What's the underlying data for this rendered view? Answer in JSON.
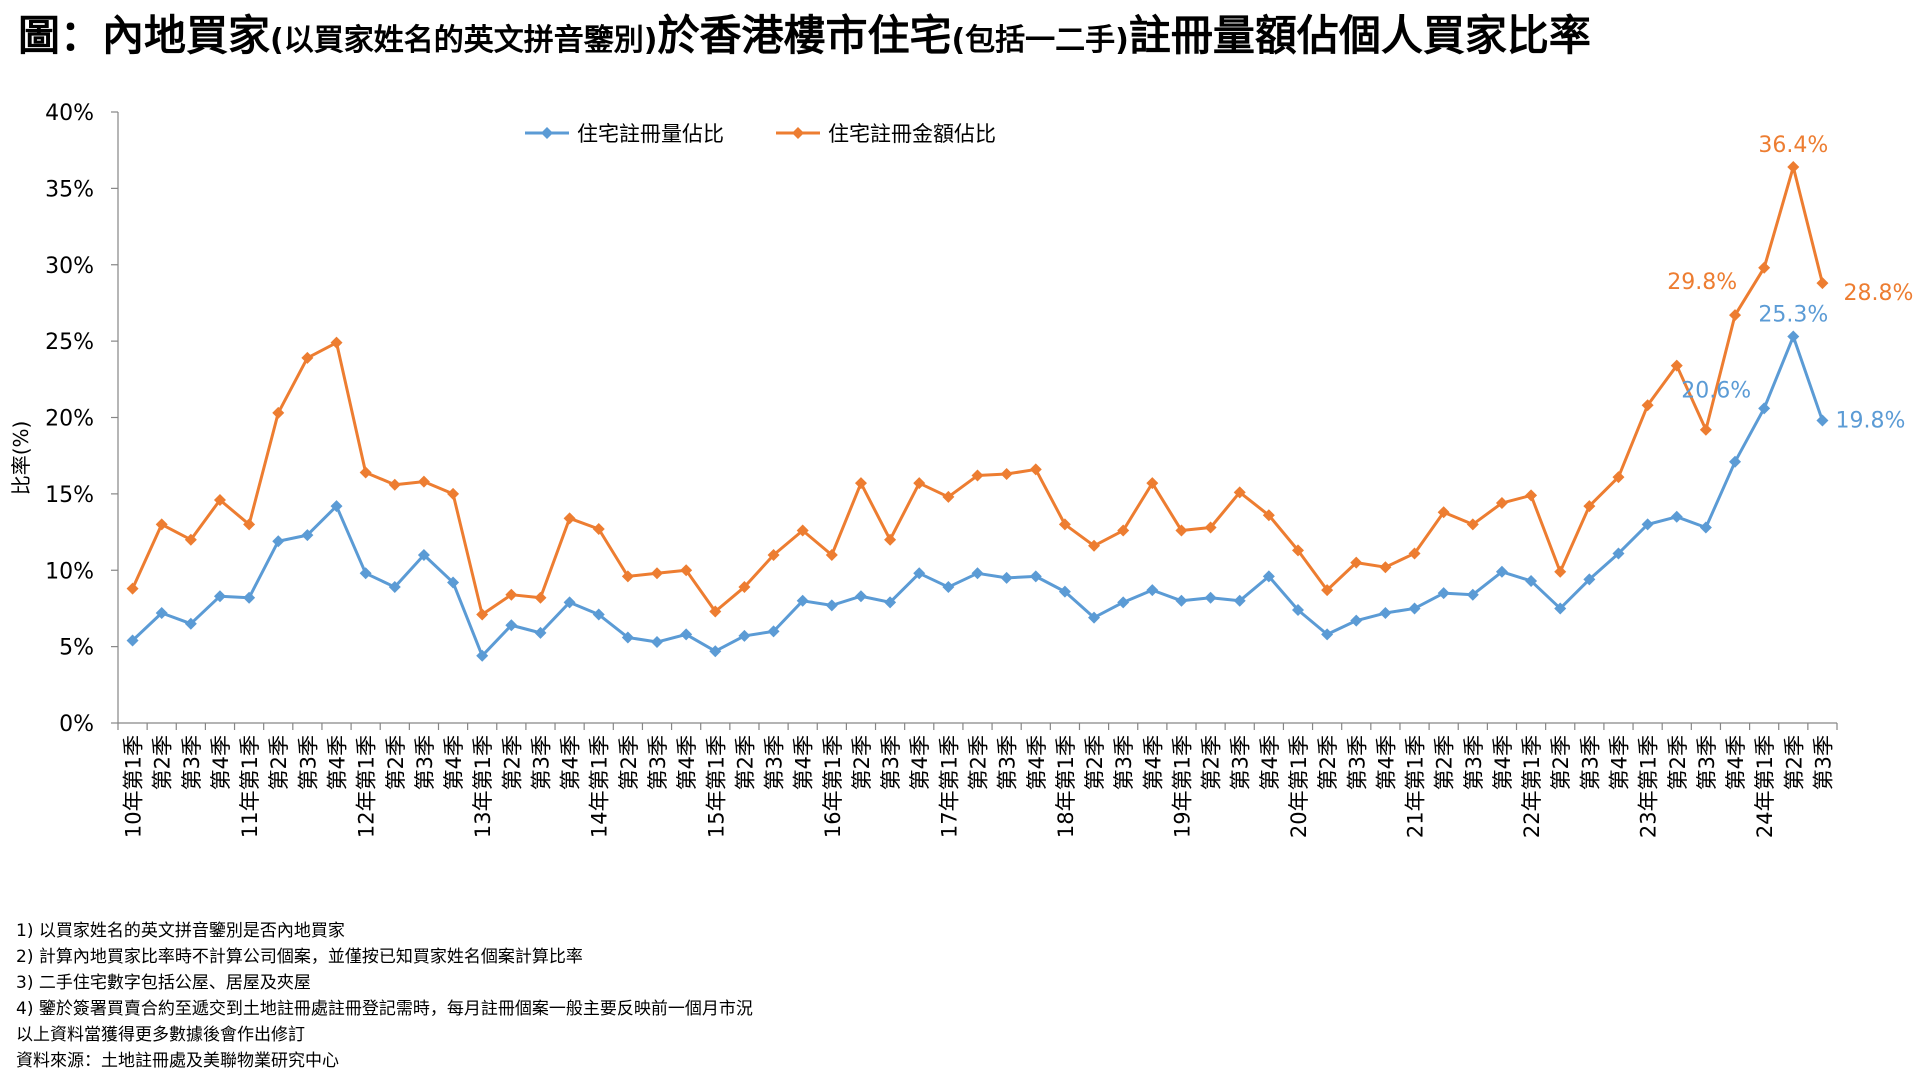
{
  "title": {
    "part1": "圖：內地買家",
    "part2": "(以買家姓名的英文拼音鑒別)",
    "part3": "於香港樓市住宅",
    "part4": "(包括一二手)",
    "part5": "註冊量額佔個人買家比率"
  },
  "chart_data": {
    "type": "line",
    "ylabel": "比率(%)",
    "ylim": [
      0,
      40
    ],
    "yticks": [
      "0%",
      "5%",
      "10%",
      "15%",
      "20%",
      "25%",
      "30%",
      "35%",
      "40%"
    ],
    "categories": [
      "10年第1季",
      "第2季",
      "第3季",
      "第4季",
      "11年第1季",
      "第2季",
      "第3季",
      "第4季",
      "12年第1季",
      "第2季",
      "第3季",
      "第4季",
      "13年第1季",
      "第2季",
      "第3季",
      "第4季",
      "14年第1季",
      "第2季",
      "第3季",
      "第4季",
      "15年第1季",
      "第2季",
      "第3季",
      "第4季",
      "16年第1季",
      "第2季",
      "第3季",
      "第4季",
      "17年第1季",
      "第2季",
      "第3季",
      "第4季",
      "18年第1季",
      "第2季",
      "第3季",
      "第4季",
      "19年第1季",
      "第2季",
      "第3季",
      "第4季",
      "20年第1季",
      "第2季",
      "第3季",
      "第4季",
      "21年第1季",
      "第2季",
      "第3季",
      "第4季",
      "22年第1季",
      "第2季",
      "第3季",
      "第4季",
      "23年第1季",
      "第2季",
      "第3季",
      "第4季",
      "24年第1季",
      "第2季",
      "第3季"
    ],
    "legend_position": "top",
    "series": [
      {
        "name": "住宅註冊量佔比",
        "color": "#5b9bd5",
        "values": [
          5.4,
          7.2,
          6.5,
          8.3,
          8.2,
          11.9,
          12.3,
          14.2,
          9.8,
          8.9,
          11.0,
          9.2,
          4.4,
          6.4,
          5.9,
          7.9,
          7.1,
          5.6,
          5.3,
          5.8,
          4.7,
          5.7,
          6.0,
          8.0,
          7.7,
          8.3,
          7.9,
          9.8,
          8.9,
          9.8,
          9.5,
          9.6,
          8.6,
          6.9,
          7.9,
          8.7,
          8.0,
          8.2,
          8.0,
          9.6,
          7.4,
          5.8,
          6.7,
          7.2,
          7.5,
          8.5,
          8.4,
          9.9,
          9.3,
          7.5,
          9.4,
          11.1,
          13.0,
          13.5,
          12.8,
          17.1,
          20.6,
          25.3,
          19.8
        ],
        "labels": {
          "56": "20.6%",
          "57": "25.3%",
          "58": "19.8%"
        }
      },
      {
        "name": "住宅註冊金額佔比",
        "color": "#ed7d31",
        "values": [
          8.8,
          13.0,
          12.0,
          14.6,
          13.0,
          20.3,
          23.9,
          24.9,
          16.4,
          15.6,
          15.8,
          15.0,
          7.1,
          8.4,
          8.2,
          13.4,
          12.7,
          9.6,
          9.8,
          10.0,
          7.3,
          8.9,
          11.0,
          12.6,
          11.0,
          15.7,
          12.0,
          15.7,
          14.8,
          16.2,
          16.3,
          16.6,
          13.0,
          11.6,
          12.6,
          15.7,
          12.6,
          12.8,
          15.1,
          13.6,
          11.3,
          8.7,
          10.5,
          10.2,
          11.1,
          13.8,
          13.0,
          14.4,
          14.9,
          9.9,
          14.2,
          16.1,
          20.8,
          23.4,
          19.2,
          26.7,
          29.8,
          36.4,
          28.8
        ],
        "labels": {
          "56": "29.8%",
          "57": "36.4%",
          "58": "28.8%"
        }
      }
    ]
  },
  "notes": [
    "1) 以買家姓名的英文拼音鑒別是否內地買家",
    "2) 計算內地買家比率時不計算公司個案，並僅按已知買家姓名個案計算比率",
    "3) 二手住宅數字包括公屋、居屋及夾屋",
    "4) 鑒於簽署買賣合約至遞交到土地註冊處註冊登記需時，每月註冊個案一般主要反映前一個月市況",
    "以上資料當獲得更多數據後會作出修訂",
    "資料來源：土地註冊處及美聯物業研究中心"
  ]
}
